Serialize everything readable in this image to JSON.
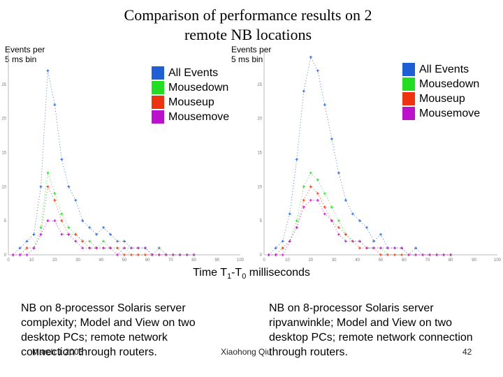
{
  "title_line1": "Comparison of performance results on 2",
  "title_line2": "remote NB locations",
  "ylabel_line1": "Events per",
  "ylabel_line2": "5 ms bin",
  "legend": [
    {
      "label": "All Events",
      "color": "#1f5fd6"
    },
    {
      "label": "Mousedown",
      "color": "#22dd22"
    },
    {
      "label": "Mouseup",
      "color": "#ee3311"
    },
    {
      "label": "Mousemove",
      "color": "#bb11cc"
    }
  ],
  "xlabel_prefix": "Time T",
  "xlabel_sub1": "1",
  "xlabel_mid": "-T",
  "xlabel_sub0": "0",
  "xlabel_suffix": " milliseconds",
  "caption_left": "NB on 8-processor Solaris server complexity; Model and View on two desktop PCs; remote network connection through routers.",
  "caption_right": "NB on 8-processor Solaris server ripvanwinkle; Model and View on two desktop PCs; remote network connection through routers.",
  "footer_date": "March 1 2003",
  "footer_author": "Xiaohong Qiu",
  "footer_page": "42",
  "chart_data": [
    {
      "type": "scatter",
      "title": "",
      "xlabel": "Time T1-T0 milliseconds",
      "ylabel": "Events per 5 ms bin",
      "xlim": [
        0,
        100
      ],
      "ylim": [
        0,
        30
      ],
      "yticks": [
        0,
        5,
        10,
        15,
        20,
        25
      ],
      "xticks": [
        0,
        10,
        20,
        30,
        40,
        50,
        60,
        70,
        80,
        90,
        100
      ],
      "series": [
        {
          "name": "All Events",
          "x": [
            2,
            5,
            8,
            11,
            14,
            17,
            20,
            23,
            26,
            29,
            32,
            35,
            38,
            41,
            44,
            47,
            50,
            53,
            56,
            59,
            62,
            65,
            68,
            71,
            74,
            77,
            80
          ],
          "values": [
            0,
            1,
            2,
            3,
            10,
            27,
            22,
            14,
            10,
            8,
            5,
            4,
            3,
            4,
            3,
            2,
            2,
            1,
            1,
            1,
            0,
            1,
            0,
            0,
            0,
            0,
            0
          ]
        },
        {
          "name": "Mousedown",
          "x": [
            2,
            5,
            8,
            11,
            14,
            17,
            20,
            23,
            26,
            29,
            32,
            35,
            38,
            41,
            44,
            47,
            50,
            53,
            56,
            59,
            62,
            65,
            68,
            71,
            74,
            77,
            80
          ],
          "values": [
            0,
            0,
            1,
            1,
            4,
            12,
            9,
            6,
            4,
            3,
            2,
            2,
            1,
            2,
            1,
            1,
            1,
            0,
            0,
            0,
            0,
            0,
            0,
            0,
            0,
            0,
            0
          ]
        },
        {
          "name": "Mouseup",
          "x": [
            2,
            5,
            8,
            11,
            14,
            17,
            20,
            23,
            26,
            29,
            32,
            35,
            38,
            41,
            44,
            47,
            50,
            53,
            56,
            59,
            62,
            65,
            68,
            71,
            74,
            77,
            80
          ],
          "values": [
            0,
            0,
            1,
            1,
            3,
            10,
            8,
            5,
            3,
            3,
            2,
            1,
            1,
            1,
            1,
            1,
            0,
            0,
            0,
            0,
            0,
            0,
            0,
            0,
            0,
            0,
            0
          ]
        },
        {
          "name": "Mousemove",
          "x": [
            2,
            5,
            8,
            11,
            14,
            17,
            20,
            23,
            26,
            29,
            32,
            35,
            38,
            41,
            44,
            47,
            50,
            53,
            56,
            59,
            62,
            65,
            68,
            71,
            74,
            77,
            80
          ],
          "values": [
            0,
            0,
            0,
            1,
            3,
            5,
            5,
            3,
            3,
            2,
            1,
            1,
            1,
            1,
            1,
            0,
            1,
            1,
            1,
            1,
            0,
            0,
            0,
            0,
            0,
            0,
            0
          ]
        }
      ]
    },
    {
      "type": "scatter",
      "title": "",
      "xlabel": "Time T1-T0 milliseconds",
      "ylabel": "Events per 5 ms bin",
      "xlim": [
        0,
        100
      ],
      "ylim": [
        0,
        30
      ],
      "yticks": [
        0,
        5,
        10,
        15,
        20,
        25
      ],
      "xticks": [
        0,
        10,
        20,
        30,
        40,
        50,
        60,
        70,
        80,
        90,
        100
      ],
      "series": [
        {
          "name": "All Events",
          "x": [
            2,
            5,
            8,
            11,
            14,
            17,
            20,
            23,
            26,
            29,
            32,
            35,
            38,
            41,
            44,
            47,
            50,
            53,
            56,
            59,
            62,
            65,
            68,
            71,
            74,
            77,
            80
          ],
          "values": [
            0,
            1,
            2,
            6,
            14,
            24,
            29,
            27,
            22,
            17,
            12,
            8,
            6,
            5,
            4,
            2,
            3,
            1,
            1,
            1,
            0,
            1,
            0,
            0,
            0,
            0,
            0
          ]
        },
        {
          "name": "Mousedown",
          "x": [
            2,
            5,
            8,
            11,
            14,
            17,
            20,
            23,
            26,
            29,
            32,
            35,
            38,
            41,
            44,
            47,
            50,
            53,
            56,
            59,
            62,
            65,
            68,
            71,
            74,
            77,
            80
          ],
          "values": [
            0,
            0,
            1,
            2,
            5,
            10,
            12,
            11,
            9,
            7,
            5,
            3,
            2,
            2,
            1,
            1,
            1,
            0,
            0,
            0,
            0,
            0,
            0,
            0,
            0,
            0,
            0
          ]
        },
        {
          "name": "Mouseup",
          "x": [
            2,
            5,
            8,
            11,
            14,
            17,
            20,
            23,
            26,
            29,
            32,
            35,
            38,
            41,
            44,
            47,
            50,
            53,
            56,
            59,
            62,
            65,
            68,
            71,
            74,
            77,
            80
          ],
          "values": [
            0,
            0,
            1,
            2,
            4,
            8,
            10,
            9,
            7,
            5,
            4,
            3,
            2,
            1,
            1,
            1,
            0,
            0,
            0,
            0,
            0,
            0,
            0,
            0,
            0,
            0,
            0
          ]
        },
        {
          "name": "Mousemove",
          "x": [
            2,
            5,
            8,
            11,
            14,
            17,
            20,
            23,
            26,
            29,
            32,
            35,
            38,
            41,
            44,
            47,
            50,
            53,
            56,
            59,
            62,
            65,
            68,
            71,
            74,
            77,
            80
          ],
          "values": [
            0,
            0,
            0,
            2,
            4,
            7,
            8,
            8,
            6,
            5,
            3,
            2,
            2,
            2,
            1,
            1,
            1,
            1,
            1,
            1,
            0,
            0,
            0,
            0,
            0,
            0,
            0
          ]
        }
      ]
    }
  ]
}
